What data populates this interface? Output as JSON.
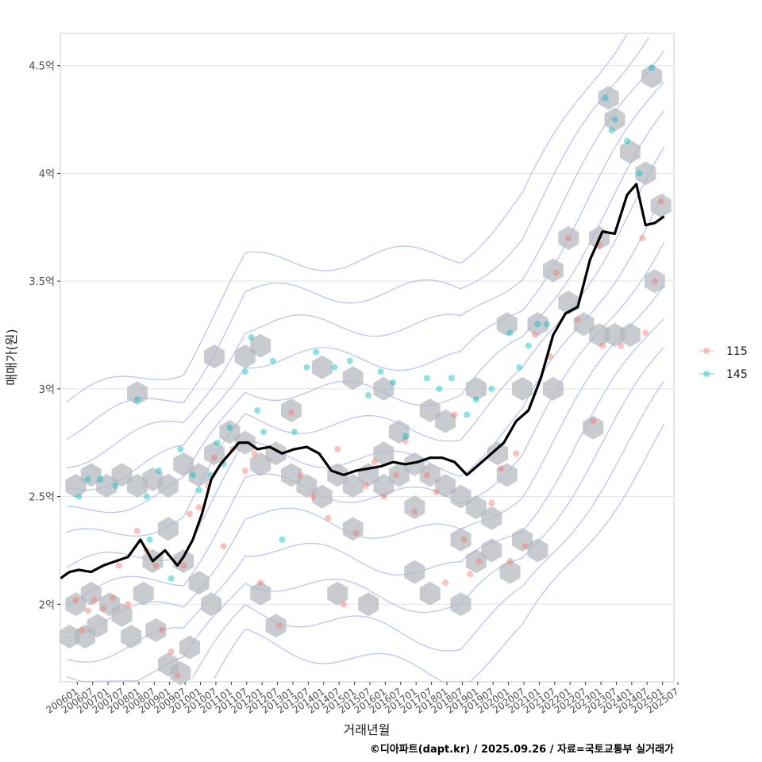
{
  "chart_data": {
    "type": "scatter",
    "xlabel": "거래년월",
    "ylabel": "매매가(원)",
    "caption": "©디아파트(dapt.kr) / 2025.09.26 / 자료=국토교통부 실거래가",
    "x_range": [
      2006.0,
      2025.92
    ],
    "y_range": [
      1.64,
      4.65
    ],
    "y_ticks": [
      {
        "value": 2.0,
        "label": "2억"
      },
      {
        "value": 2.5,
        "label": "2.5억"
      },
      {
        "value": 3.0,
        "label": "3억"
      },
      {
        "value": 3.5,
        "label": "3.5억"
      },
      {
        "value": 4.0,
        "label": "4억"
      },
      {
        "value": 4.5,
        "label": "4.5억"
      }
    ],
    "x_ticks": [
      "200601",
      "200607",
      "200701",
      "200707",
      "200801",
      "200807",
      "200901",
      "200907",
      "201001",
      "201007",
      "201101",
      "201107",
      "201201",
      "201207",
      "201301",
      "201307",
      "201401",
      "201407",
      "201501",
      "201507",
      "201601",
      "201607",
      "201701",
      "201707",
      "201801",
      "201807",
      "201901",
      "201907",
      "202001",
      "202007",
      "202101",
      "202107",
      "202201",
      "202207",
      "202301",
      "202307",
      "202401",
      "202407",
      "202501",
      "202507"
    ],
    "legend": {
      "position": "right",
      "items": [
        {
          "label": "115",
          "color": "#F8766D"
        },
        {
          "label": "145",
          "color": "#00BFC4"
        }
      ]
    },
    "series": [
      {
        "name": "115",
        "color": "#F8766D",
        "points": [
          [
            2006.5,
            2.02
          ],
          [
            2006.7,
            1.88
          ],
          [
            2006.9,
            1.97
          ],
          [
            2007.1,
            2.02
          ],
          [
            2007.4,
            1.98
          ],
          [
            2007.7,
            2.03
          ],
          [
            2007.9,
            2.18
          ],
          [
            2008.2,
            2.0
          ],
          [
            2008.5,
            2.34
          ],
          [
            2008.8,
            2.25
          ],
          [
            2009.1,
            2.18
          ],
          [
            2009.3,
            1.88
          ],
          [
            2009.6,
            1.78
          ],
          [
            2009.8,
            1.67
          ],
          [
            2010.0,
            2.18
          ],
          [
            2010.2,
            2.42
          ],
          [
            2010.5,
            2.45
          ],
          [
            2010.8,
            2.55
          ],
          [
            2011.0,
            2.68
          ],
          [
            2011.3,
            2.27
          ],
          [
            2011.6,
            2.72
          ],
          [
            2012.0,
            2.62
          ],
          [
            2012.3,
            2.7
          ],
          [
            2012.5,
            2.1
          ],
          [
            2013.1,
            1.9
          ],
          [
            2013.5,
            2.89
          ],
          [
            2013.8,
            2.6
          ],
          [
            2014.2,
            2.5
          ],
          [
            2014.7,
            2.4
          ],
          [
            2015.0,
            2.72
          ],
          [
            2015.2,
            2.0
          ],
          [
            2015.6,
            2.33
          ],
          [
            2015.9,
            2.55
          ],
          [
            2016.2,
            2.66
          ],
          [
            2016.5,
            2.5
          ],
          [
            2016.9,
            2.6
          ],
          [
            2017.2,
            2.76
          ],
          [
            2017.5,
            2.43
          ],
          [
            2017.9,
            2.6
          ],
          [
            2018.2,
            2.52
          ],
          [
            2018.5,
            2.1
          ],
          [
            2018.8,
            2.88
          ],
          [
            2019.1,
            2.3
          ],
          [
            2019.3,
            2.14
          ],
          [
            2019.6,
            2.2
          ],
          [
            2020.0,
            2.47
          ],
          [
            2020.3,
            2.63
          ],
          [
            2020.6,
            2.2
          ],
          [
            2020.8,
            2.7
          ],
          [
            2021.1,
            2.27
          ],
          [
            2021.4,
            3.25
          ],
          [
            2021.9,
            3.15
          ],
          [
            2022.1,
            3.54
          ],
          [
            2022.5,
            3.7
          ],
          [
            2022.8,
            3.32
          ],
          [
            2023.3,
            2.85
          ],
          [
            2023.5,
            3.67
          ],
          [
            2023.6,
            3.2
          ],
          [
            2024.2,
            3.2
          ],
          [
            2024.9,
            3.7
          ],
          [
            2025.0,
            3.26
          ],
          [
            2025.3,
            3.5
          ],
          [
            2025.5,
            3.87
          ]
        ]
      },
      {
        "name": "145",
        "color": "#00BFC4",
        "points": [
          [
            2006.6,
            2.5
          ],
          [
            2006.9,
            2.58
          ],
          [
            2007.3,
            2.58
          ],
          [
            2007.8,
            2.55
          ],
          [
            2008.5,
            2.95
          ],
          [
            2008.8,
            2.5
          ],
          [
            2008.9,
            2.3
          ],
          [
            2009.2,
            2.62
          ],
          [
            2009.6,
            2.12
          ],
          [
            2009.9,
            2.72
          ],
          [
            2010.3,
            2.6
          ],
          [
            2010.5,
            2.53
          ],
          [
            2010.9,
            2.6
          ],
          [
            2011.1,
            2.75
          ],
          [
            2011.3,
            2.65
          ],
          [
            2011.5,
            2.82
          ],
          [
            2012.0,
            3.08
          ],
          [
            2012.2,
            3.24
          ],
          [
            2012.4,
            2.9
          ],
          [
            2012.6,
            2.8
          ],
          [
            2012.9,
            3.13
          ],
          [
            2013.2,
            2.3
          ],
          [
            2013.6,
            2.8
          ],
          [
            2014.0,
            3.1
          ],
          [
            2014.3,
            3.17
          ],
          [
            2014.9,
            3.1
          ],
          [
            2015.4,
            3.13
          ],
          [
            2016.0,
            2.97
          ],
          [
            2016.4,
            3.08
          ],
          [
            2016.8,
            3.03
          ],
          [
            2017.2,
            2.78
          ],
          [
            2017.9,
            3.05
          ],
          [
            2018.3,
            3.0
          ],
          [
            2018.7,
            3.05
          ],
          [
            2019.2,
            2.88
          ],
          [
            2019.5,
            2.95
          ],
          [
            2020.0,
            3.0
          ],
          [
            2020.6,
            3.26
          ],
          [
            2020.9,
            3.1
          ],
          [
            2021.2,
            3.2
          ],
          [
            2021.5,
            3.3
          ],
          [
            2021.8,
            3.3
          ],
          [
            2023.7,
            4.35
          ],
          [
            2023.9,
            4.2
          ],
          [
            2024.0,
            4.25
          ],
          [
            2024.4,
            4.15
          ],
          [
            2024.8,
            4.0
          ],
          [
            2025.2,
            4.49
          ]
        ]
      }
    ],
    "moving_average": {
      "color": "#000000",
      "points": [
        [
          2006.0,
          2.12
        ],
        [
          2006.3,
          2.15
        ],
        [
          2006.6,
          2.16
        ],
        [
          2007.0,
          2.15
        ],
        [
          2007.4,
          2.18
        ],
        [
          2007.8,
          2.2
        ],
        [
          2008.2,
          2.22
        ],
        [
          2008.6,
          2.3
        ],
        [
          2009.0,
          2.2
        ],
        [
          2009.4,
          2.25
        ],
        [
          2009.8,
          2.18
        ],
        [
          2010.0,
          2.22
        ],
        [
          2010.3,
          2.3
        ],
        [
          2010.6,
          2.42
        ],
        [
          2010.9,
          2.58
        ],
        [
          2011.2,
          2.65
        ],
        [
          2011.5,
          2.7
        ],
        [
          2011.8,
          2.75
        ],
        [
          2012.1,
          2.75
        ],
        [
          2012.4,
          2.72
        ],
        [
          2012.8,
          2.73
        ],
        [
          2013.2,
          2.7
        ],
        [
          2013.6,
          2.72
        ],
        [
          2014.0,
          2.73
        ],
        [
          2014.4,
          2.7
        ],
        [
          2014.8,
          2.62
        ],
        [
          2015.2,
          2.6
        ],
        [
          2015.6,
          2.62
        ],
        [
          2016.0,
          2.63
        ],
        [
          2016.4,
          2.64
        ],
        [
          2016.8,
          2.66
        ],
        [
          2017.2,
          2.65
        ],
        [
          2017.6,
          2.66
        ],
        [
          2018.0,
          2.68
        ],
        [
          2018.4,
          2.68
        ],
        [
          2018.8,
          2.66
        ],
        [
          2019.2,
          2.6
        ],
        [
          2019.6,
          2.65
        ],
        [
          2020.0,
          2.7
        ],
        [
          2020.4,
          2.75
        ],
        [
          2020.8,
          2.85
        ],
        [
          2021.2,
          2.9
        ],
        [
          2021.6,
          3.05
        ],
        [
          2022.0,
          3.25
        ],
        [
          2022.4,
          3.35
        ],
        [
          2022.8,
          3.38
        ],
        [
          2023.2,
          3.6
        ],
        [
          2023.6,
          3.73
        ],
        [
          2024.0,
          3.72
        ],
        [
          2024.4,
          3.9
        ],
        [
          2024.7,
          3.95
        ],
        [
          2025.0,
          3.76
        ],
        [
          2025.3,
          3.77
        ],
        [
          2025.6,
          3.8
        ]
      ]
    },
    "hexbins": [
      [
        2006.3,
        1.85
      ],
      [
        2006.5,
        2.0
      ],
      [
        2006.8,
        1.85
      ],
      [
        2007.0,
        2.05
      ],
      [
        2007.2,
        1.9
      ],
      [
        2007.6,
        2.0
      ],
      [
        2008.0,
        1.95
      ],
      [
        2008.3,
        1.85
      ],
      [
        2008.7,
        2.05
      ],
      [
        2009.1,
        1.88
      ],
      [
        2009.5,
        1.72
      ],
      [
        2009.9,
        1.68
      ],
      [
        2010.2,
        1.8
      ],
      [
        2009.0,
        2.2
      ],
      [
        2009.5,
        2.35
      ],
      [
        2010.0,
        2.2
      ],
      [
        2010.5,
        2.1
      ],
      [
        2010.9,
        2.0
      ],
      [
        2006.5,
        2.55
      ],
      [
        2007.0,
        2.6
      ],
      [
        2007.5,
        2.55
      ],
      [
        2008.0,
        2.6
      ],
      [
        2008.5,
        2.55
      ],
      [
        2009.0,
        2.58
      ],
      [
        2009.5,
        2.55
      ],
      [
        2010.0,
        2.65
      ],
      [
        2010.5,
        2.6
      ],
      [
        2011.0,
        2.7
      ],
      [
        2011.5,
        2.8
      ],
      [
        2012.0,
        2.75
      ],
      [
        2012.5,
        2.65
      ],
      [
        2013.0,
        2.7
      ],
      [
        2013.5,
        2.6
      ],
      [
        2014.0,
        2.55
      ],
      [
        2014.5,
        2.5
      ],
      [
        2015.0,
        2.6
      ],
      [
        2015.5,
        2.55
      ],
      [
        2016.0,
        2.6
      ],
      [
        2016.5,
        2.55
      ],
      [
        2017.0,
        2.6
      ],
      [
        2017.5,
        2.45
      ],
      [
        2018.0,
        2.6
      ],
      [
        2018.5,
        2.55
      ],
      [
        2019.0,
        2.5
      ],
      [
        2019.5,
        2.45
      ],
      [
        2020.0,
        2.4
      ],
      [
        2020.5,
        2.6
      ],
      [
        2021.0,
        2.3
      ],
      [
        2021.5,
        2.25
      ],
      [
        2022.0,
        3.0
      ],
      [
        2022.5,
        3.4
      ],
      [
        2023.0,
        3.3
      ],
      [
        2023.5,
        3.25
      ],
      [
        2024.0,
        3.25
      ],
      [
        2024.5,
        3.25
      ],
      [
        2012.0,
        3.15
      ],
      [
        2012.5,
        3.2
      ],
      [
        2013.5,
        2.9
      ],
      [
        2014.5,
        3.1
      ],
      [
        2015.5,
        3.05
      ],
      [
        2016.5,
        3.0
      ],
      [
        2017.0,
        2.8
      ],
      [
        2018.0,
        2.9
      ],
      [
        2018.5,
        2.85
      ],
      [
        2019.5,
        3.0
      ],
      [
        2020.5,
        3.3
      ],
      [
        2021.0,
        3.0
      ],
      [
        2021.5,
        3.3
      ],
      [
        2022.0,
        3.55
      ],
      [
        2022.5,
        3.7
      ],
      [
        2023.5,
        3.7
      ],
      [
        2023.8,
        4.35
      ],
      [
        2024.0,
        4.25
      ],
      [
        2024.5,
        4.1
      ],
      [
        2025.0,
        4.0
      ],
      [
        2025.2,
        4.45
      ],
      [
        2025.5,
        3.85
      ],
      [
        2025.3,
        3.5
      ],
      [
        2008.5,
        2.98
      ],
      [
        2012.5,
        2.05
      ],
      [
        2013.0,
        1.9
      ],
      [
        2015.0,
        2.05
      ],
      [
        2016.0,
        2.0
      ],
      [
        2017.5,
        2.15
      ],
      [
        2018.0,
        2.05
      ],
      [
        2019.0,
        2.0
      ],
      [
        2019.5,
        2.2
      ],
      [
        2020.0,
        2.25
      ],
      [
        2020.6,
        2.15
      ],
      [
        2023.3,
        2.82
      ],
      [
        2011.0,
        3.15
      ],
      [
        2015.5,
        2.35
      ],
      [
        2016.5,
        2.7
      ],
      [
        2017.5,
        2.65
      ],
      [
        2019.0,
        2.3
      ],
      [
        2020.2,
        2.7
      ]
    ],
    "density_levels": 13
  }
}
